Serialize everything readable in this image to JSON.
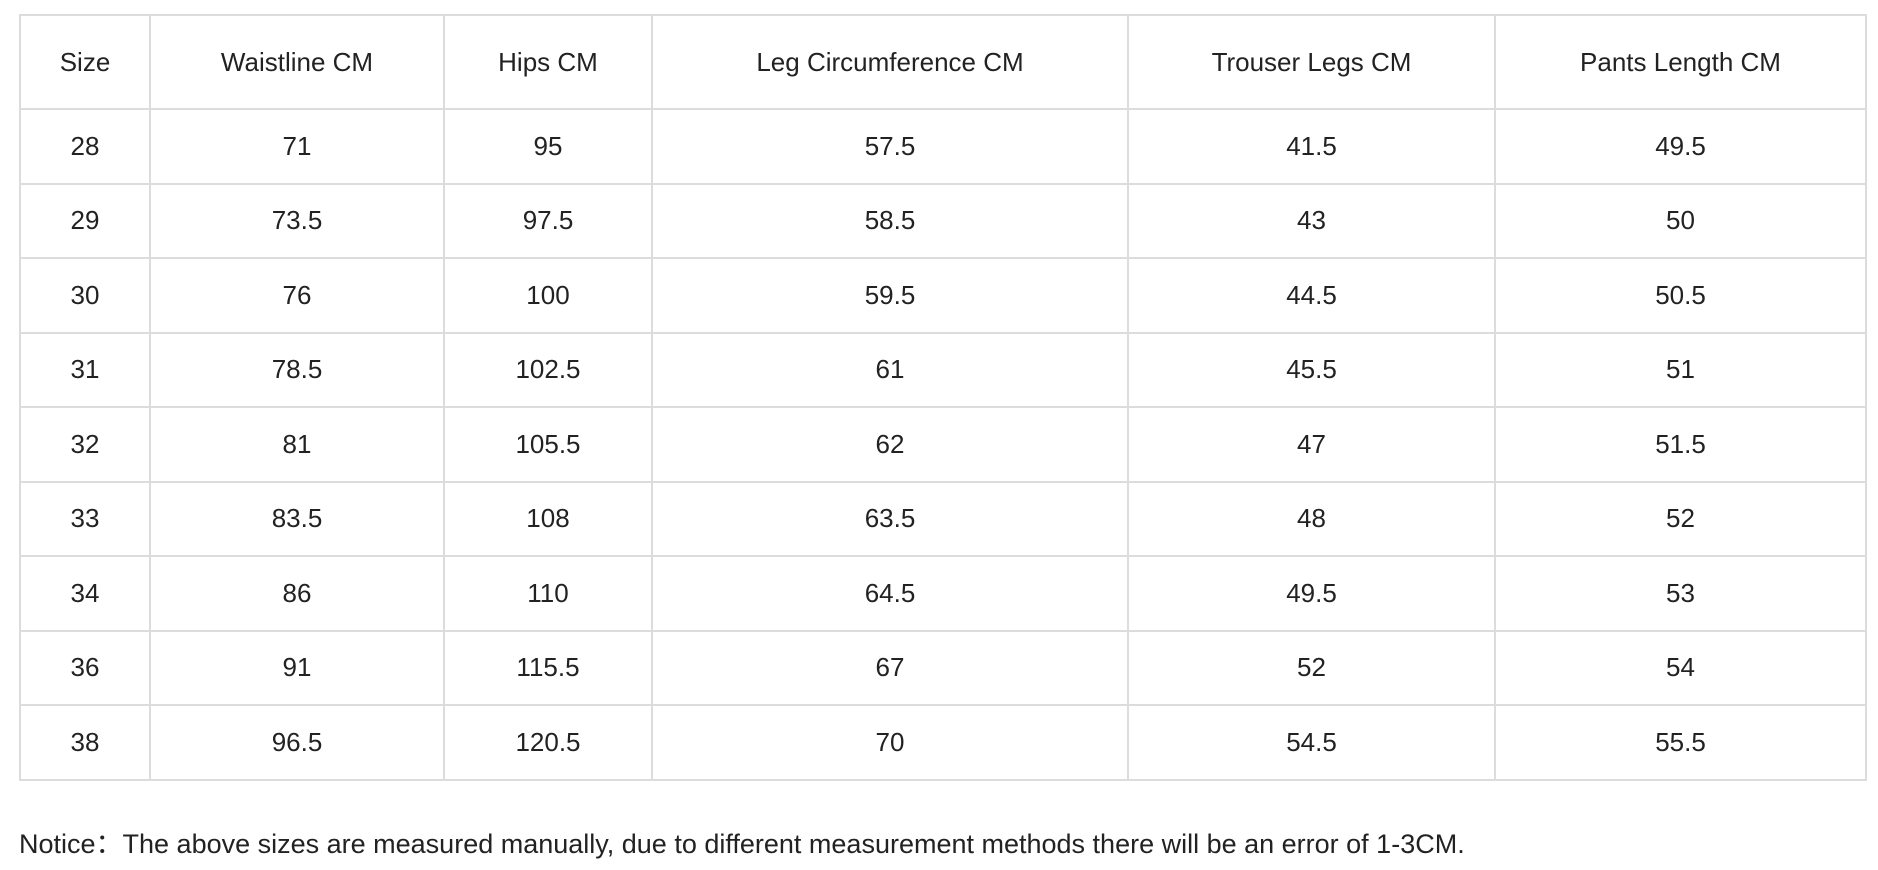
{
  "table": {
    "header": [
      "Size",
      "Waistline CM",
      "Hips CM",
      "Leg Circumference CM",
      "Trouser Legs CM",
      "Pants Length CM"
    ],
    "rows": [
      [
        28,
        71,
        95,
        57.5,
        41.5,
        49.5
      ],
      [
        29,
        73.5,
        97.5,
        58.5,
        43,
        50
      ],
      [
        30,
        76,
        100,
        59.5,
        44.5,
        50.5
      ],
      [
        31,
        78.5,
        102.5,
        61,
        45.5,
        51
      ],
      [
        32,
        81,
        105.5,
        62,
        47,
        51.5
      ],
      [
        33,
        83.5,
        108,
        63.5,
        48,
        52
      ],
      [
        34,
        86,
        110,
        64.5,
        49.5,
        53
      ],
      [
        36,
        91,
        115.5,
        67,
        52,
        54
      ],
      [
        38,
        96.5,
        120.5,
        70,
        54.5,
        55.5
      ]
    ]
  },
  "notice": "Notice：The above sizes are measured manually, due to different measurement methods there will be an error of 1-3CM."
}
